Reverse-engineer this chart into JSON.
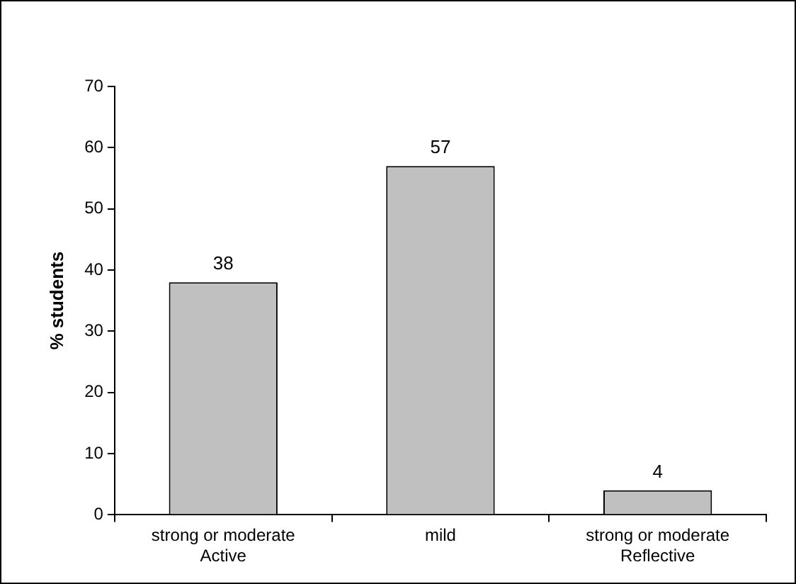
{
  "chart_data": {
    "type": "bar",
    "ylabel": "% students",
    "categories": [
      "strong or moderate\nActive",
      "mild",
      "strong or moderate\nReflective"
    ],
    "values": [
      38,
      57,
      4
    ],
    "color": "#c0c0c0",
    "ylim": [
      0,
      70
    ],
    "yticks": [
      0,
      10,
      20,
      30,
      40,
      50,
      60,
      70
    ],
    "grid": false,
    "legend": false,
    "data_labels": true
  }
}
